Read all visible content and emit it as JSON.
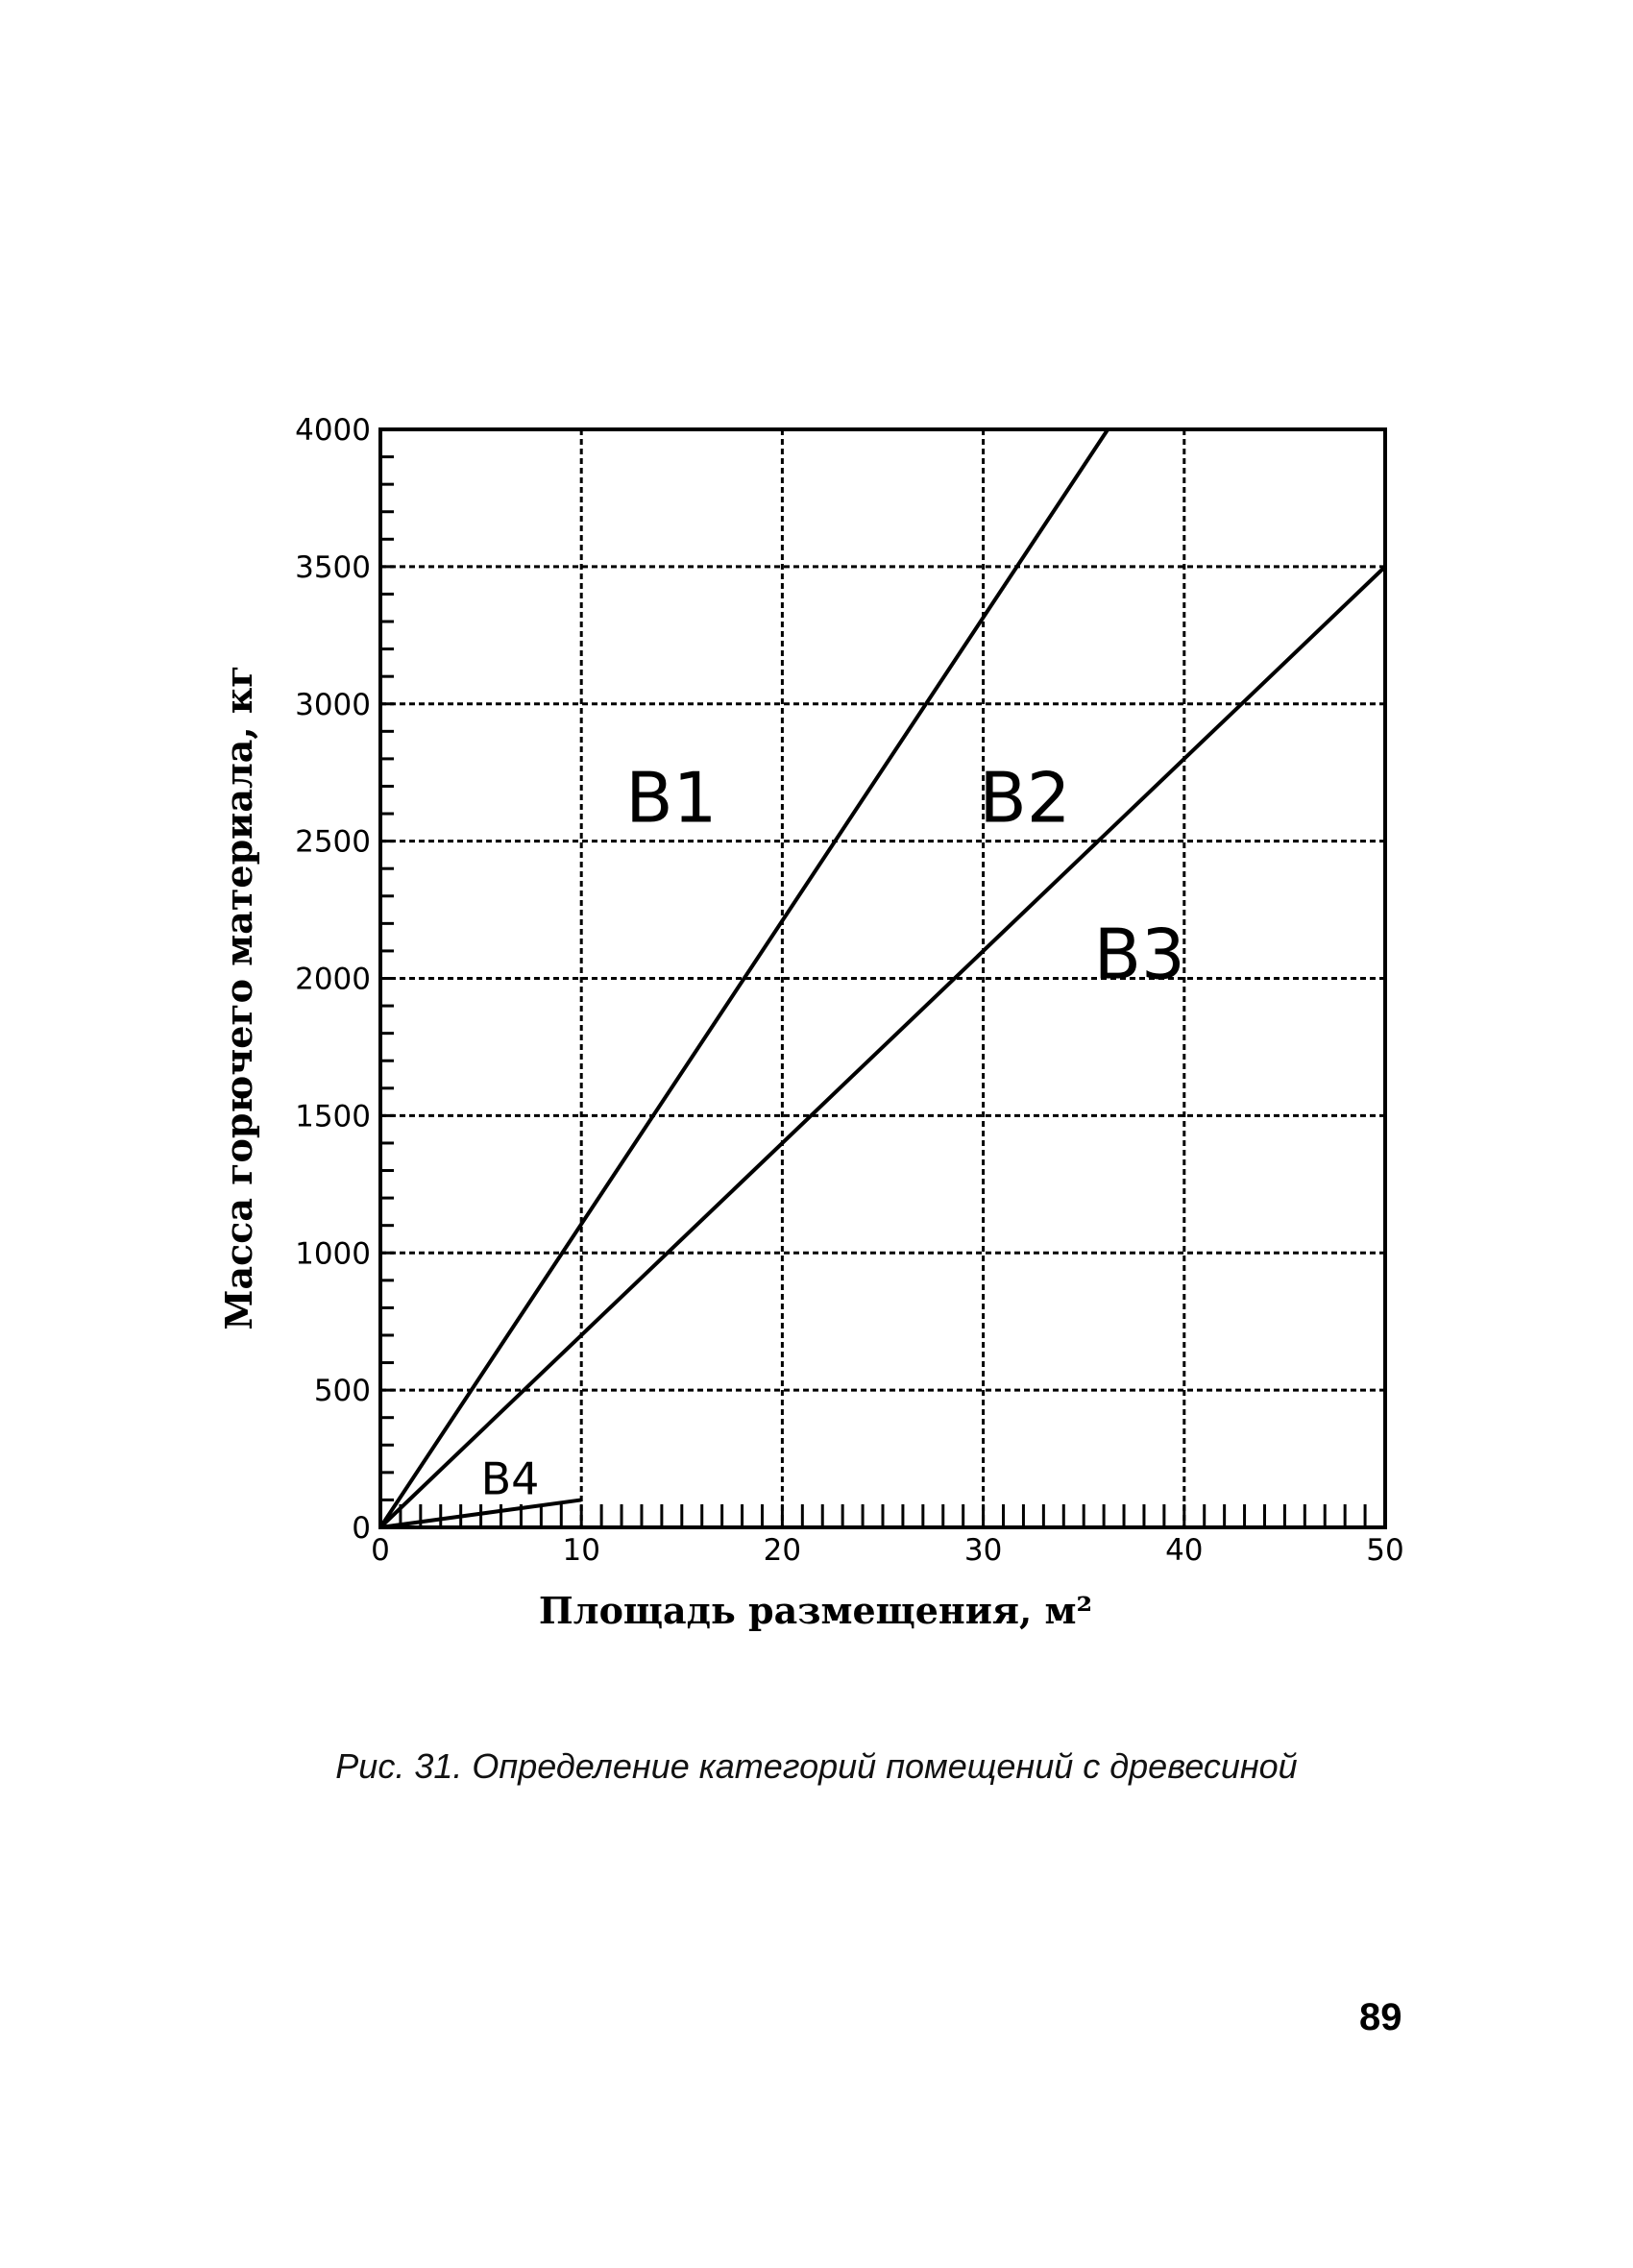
{
  "chart_data": {
    "type": "line",
    "xlabel": "Площадь размещения, м²",
    "ylabel": "Масса горючего материала, кг",
    "xlim": [
      0,
      50
    ],
    "ylim": [
      0,
      4000
    ],
    "x_ticks": [
      "0",
      "10",
      "20",
      "30",
      "40",
      "50"
    ],
    "y_ticks": [
      "0",
      "500",
      "1000",
      "1500",
      "2000",
      "2500",
      "3000",
      "3500",
      "4000"
    ],
    "grid": true,
    "series": [
      {
        "x": [
          0,
          36.2
        ],
        "y": [
          0,
          4000
        ]
      },
      {
        "x": [
          0,
          50
        ],
        "y": [
          0,
          3500
        ]
      },
      {
        "x": [
          0,
          10
        ],
        "y": [
          0,
          100
        ]
      }
    ],
    "region_labels": {
      "b1": "B1",
      "b2": "B2",
      "b3": "B3",
      "b4": "B4"
    }
  },
  "caption": "Рис. 31. Определение категорий помещений с древесиной",
  "page_number": "89"
}
